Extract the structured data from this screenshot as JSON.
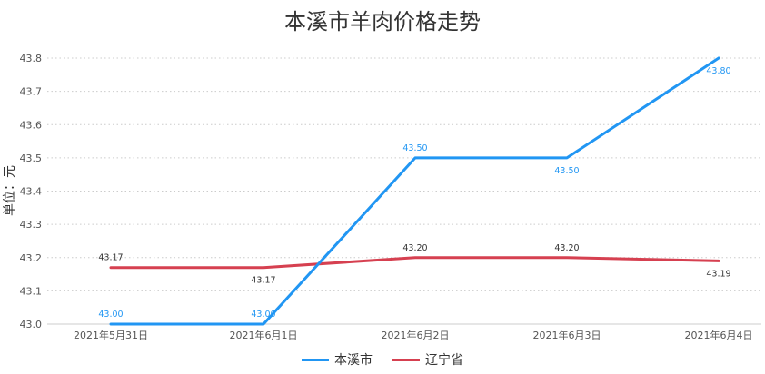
{
  "chart_data": {
    "type": "line",
    "title": "本溪市羊肉价格走势",
    "ylabel": "单位：元",
    "xlabel": "",
    "categories": [
      "2021年5月31日",
      "2021年6月1日",
      "2021年6月2日",
      "2021年6月3日",
      "2021年6月4日"
    ],
    "ylim": [
      43.0,
      43.8
    ],
    "yticks": [
      "43.0",
      "43.1",
      "43.2",
      "43.3",
      "43.4",
      "43.5",
      "43.6",
      "43.7",
      "43.8"
    ],
    "grid": true,
    "legend_position": "bottom",
    "series": [
      {
        "name": "本溪市",
        "color": "#2196F3",
        "values": [
          43.0,
          43.0,
          43.5,
          43.5,
          43.8
        ],
        "labels": [
          "43.00",
          "43.00",
          "43.50",
          "43.50",
          "43.80"
        ],
        "label_positions": [
          "above",
          "above",
          "above",
          "below",
          "below"
        ]
      },
      {
        "name": "辽宁省",
        "color": "#D64050",
        "values": [
          43.17,
          43.17,
          43.2,
          43.2,
          43.19
        ],
        "labels": [
          "43.17",
          "43.17",
          "43.20",
          "43.20",
          "43.19"
        ],
        "label_positions": [
          "above",
          "below",
          "above",
          "above",
          "below"
        ]
      }
    ]
  }
}
